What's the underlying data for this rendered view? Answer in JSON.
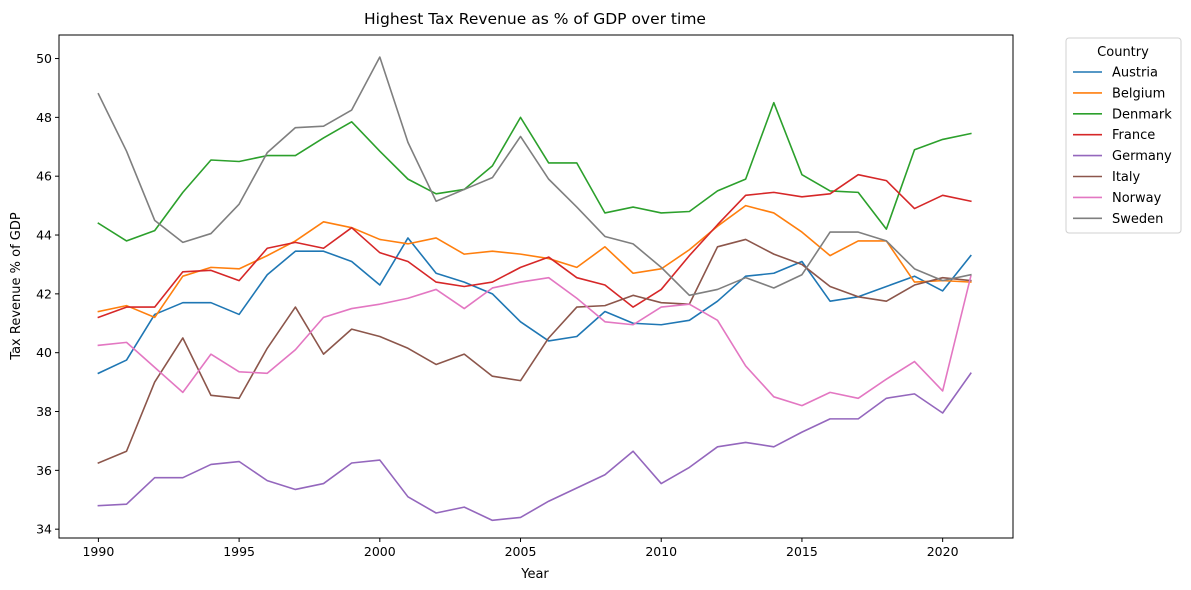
{
  "chart_data": {
    "type": "line",
    "title": "Highest Tax Revenue as % of GDP over time",
    "xlabel": "Year",
    "ylabel": "Tax Revenue % of GDP",
    "xlim": [
      1988.6,
      2022.5
    ],
    "ylim": [
      33.7,
      50.8
    ],
    "xticks": [
      1990,
      1995,
      2000,
      2005,
      2010,
      2015,
      2020
    ],
    "yticks": [
      34,
      36,
      38,
      40,
      42,
      44,
      46,
      48,
      50
    ],
    "grid": false,
    "legend": {
      "title": "Country",
      "placement": "outside-top-right"
    },
    "x": [
      1990,
      1991,
      1992,
      1993,
      1994,
      1995,
      1996,
      1997,
      1998,
      1999,
      2000,
      2001,
      2002,
      2003,
      2004,
      2005,
      2006,
      2007,
      2008,
      2009,
      2010,
      2011,
      2012,
      2013,
      2014,
      2015,
      2016,
      2017,
      2018,
      2019,
      2020,
      2021
    ],
    "series": [
      {
        "name": "Austria",
        "color": "#1f77b4",
        "values": [
          39.3,
          39.75,
          41.3,
          41.7,
          41.7,
          41.3,
          42.65,
          43.45,
          43.45,
          43.1,
          42.3,
          43.9,
          42.7,
          42.4,
          42.0,
          41.05,
          40.4,
          40.55,
          41.4,
          41.0,
          40.95,
          41.1,
          41.75,
          42.6,
          42.7,
          43.1,
          41.75,
          41.9,
          42.25,
          42.6,
          42.1,
          43.3
        ]
      },
      {
        "name": "Belgium",
        "color": "#ff7f0e",
        "values": [
          41.4,
          41.6,
          41.2,
          42.6,
          42.9,
          42.85,
          43.3,
          43.8,
          44.45,
          44.25,
          43.85,
          43.7,
          43.9,
          43.35,
          43.45,
          43.35,
          43.2,
          42.9,
          43.6,
          42.7,
          42.85,
          43.5,
          44.3,
          45.0,
          44.75,
          44.1,
          43.3,
          43.8,
          43.8,
          42.4,
          42.45,
          42.4
        ]
      },
      {
        "name": "Denmark",
        "color": "#2ca02c",
        "values": [
          44.4,
          43.8,
          44.15,
          45.45,
          46.55,
          46.5,
          46.7,
          46.7,
          47.3,
          47.85,
          46.85,
          45.9,
          45.4,
          45.55,
          46.35,
          48.0,
          46.45,
          46.45,
          44.75,
          44.95,
          44.75,
          44.8,
          45.5,
          45.9,
          48.5,
          46.05,
          45.5,
          45.45,
          44.2,
          46.9,
          47.25,
          47.45
        ]
      },
      {
        "name": "France",
        "color": "#d62728",
        "values": [
          41.2,
          41.55,
          41.55,
          42.75,
          42.8,
          42.45,
          43.55,
          43.75,
          43.55,
          44.25,
          43.4,
          43.1,
          42.4,
          42.25,
          42.4,
          42.9,
          43.25,
          42.55,
          42.3,
          41.55,
          42.15,
          43.3,
          44.35,
          45.35,
          45.45,
          45.3,
          45.4,
          46.05,
          45.85,
          44.9,
          45.35,
          45.15
        ]
      },
      {
        "name": "Germany",
        "color": "#9467bd",
        "values": [
          34.8,
          34.85,
          35.75,
          35.75,
          36.2,
          36.3,
          35.65,
          35.35,
          35.55,
          36.25,
          36.35,
          35.1,
          34.55,
          34.75,
          34.3,
          34.4,
          34.95,
          35.4,
          35.85,
          36.65,
          35.55,
          36.1,
          36.8,
          36.95,
          36.8,
          37.3,
          37.75,
          37.75,
          38.45,
          38.6,
          37.95,
          39.3
        ]
      },
      {
        "name": "Italy",
        "color": "#8c564b",
        "values": [
          36.25,
          36.65,
          39.0,
          40.5,
          38.55,
          38.45,
          40.15,
          41.55,
          39.95,
          40.8,
          40.55,
          40.15,
          39.6,
          39.95,
          39.2,
          39.05,
          40.5,
          41.55,
          41.6,
          41.95,
          41.7,
          41.65,
          43.6,
          43.85,
          43.35,
          43.0,
          42.25,
          41.9,
          41.75,
          42.3,
          42.55,
          42.45
        ]
      },
      {
        "name": "Norway",
        "color": "#e377c2",
        "values": [
          40.25,
          40.35,
          39.5,
          38.65,
          39.95,
          39.35,
          39.3,
          40.1,
          41.2,
          41.5,
          41.65,
          41.85,
          42.15,
          41.5,
          42.2,
          42.4,
          42.55,
          41.85,
          41.05,
          40.95,
          41.55,
          41.65,
          41.1,
          39.55,
          38.5,
          38.2,
          38.65,
          38.45,
          39.1,
          39.7,
          38.7,
          42.6
        ]
      },
      {
        "name": "Sweden",
        "color": "#7f7f7f",
        "values": [
          48.8,
          46.85,
          44.5,
          43.75,
          44.05,
          45.05,
          46.8,
          47.65,
          47.7,
          48.25,
          50.05,
          47.15,
          45.15,
          45.55,
          45.95,
          47.35,
          45.9,
          44.95,
          43.95,
          43.7,
          42.9,
          41.95,
          42.15,
          42.55,
          42.2,
          42.65,
          44.1,
          44.1,
          43.8,
          42.85,
          42.45,
          42.65
        ]
      }
    ]
  }
}
